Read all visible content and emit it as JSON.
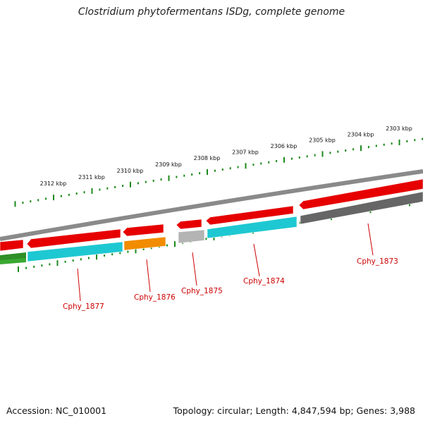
{
  "title": "Clostridium phytofermentans ISDg, complete genome",
  "footer": {
    "accession": "Accession: NC_010001",
    "summary": "Topology: circular; Length: 4,847,594 bp; Genes: 3,988"
  },
  "colors": {
    "backbone": "#8a8a8a",
    "forward_gene": "#e60000",
    "cds": "#1ec8d2",
    "other_gene": "#f28c00",
    "gray_gene": "#666666",
    "light_gray_gene": "#b4b4b4",
    "green_gene": "#3aa832",
    "ticks": "#1a8a1a",
    "label_line": "#cc0000"
  },
  "kbp_ticks": [
    {
      "kbp": 2303,
      "label": "2303 kbp"
    },
    {
      "kbp": 2304,
      "label": "2304 kbp"
    },
    {
      "kbp": 2305,
      "label": "2305 kbp"
    },
    {
      "kbp": 2306,
      "label": "2306 kbp"
    },
    {
      "kbp": 2307,
      "label": "2307 kbp"
    },
    {
      "kbp": 2308,
      "label": "2308 kbp"
    },
    {
      "kbp": 2309,
      "label": "2309 kbp"
    },
    {
      "kbp": 2310,
      "label": "2310 kbp"
    },
    {
      "kbp": 2311,
      "label": "2311 kbp"
    },
    {
      "kbp": 2312,
      "label": "2312 kbp"
    }
  ],
  "gene_labels": [
    {
      "name": "Cphy_1873"
    },
    {
      "name": "Cphy_1874"
    },
    {
      "name": "Cphy_1875"
    },
    {
      "name": "Cphy_1876"
    },
    {
      "name": "Cphy_1877"
    }
  ]
}
